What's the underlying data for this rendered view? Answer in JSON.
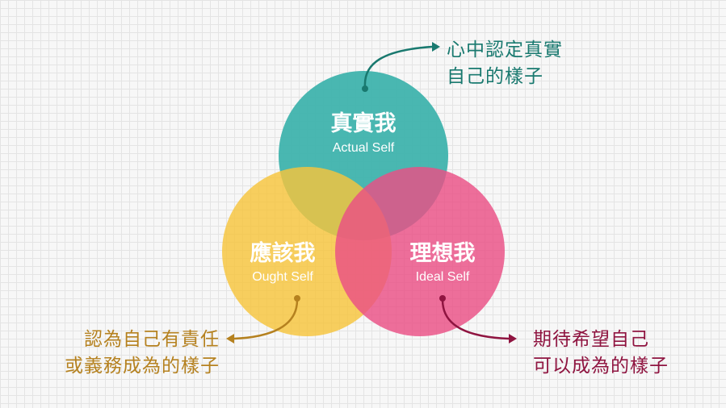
{
  "circles": {
    "actual": {
      "zh": "真實我",
      "en": "Actual Self",
      "color": "#3fb3ad"
    },
    "ought": {
      "zh": "應該我",
      "en": "Ought Self",
      "color": "#f8c840"
    },
    "ideal": {
      "zh": "理想我",
      "en": "Ideal Self",
      "color": "#ec5789"
    }
  },
  "notes": {
    "actual": [
      "心中認定真實",
      "自己的樣子"
    ],
    "ought": [
      "認為自己有責任",
      "或義務成為的樣子"
    ],
    "ideal": [
      "期待希望自己",
      "可以成為的樣子"
    ]
  },
  "colors": {
    "actual_note": "#19796f",
    "ought_note": "#b5811f",
    "ideal_note": "#8f1440"
  }
}
